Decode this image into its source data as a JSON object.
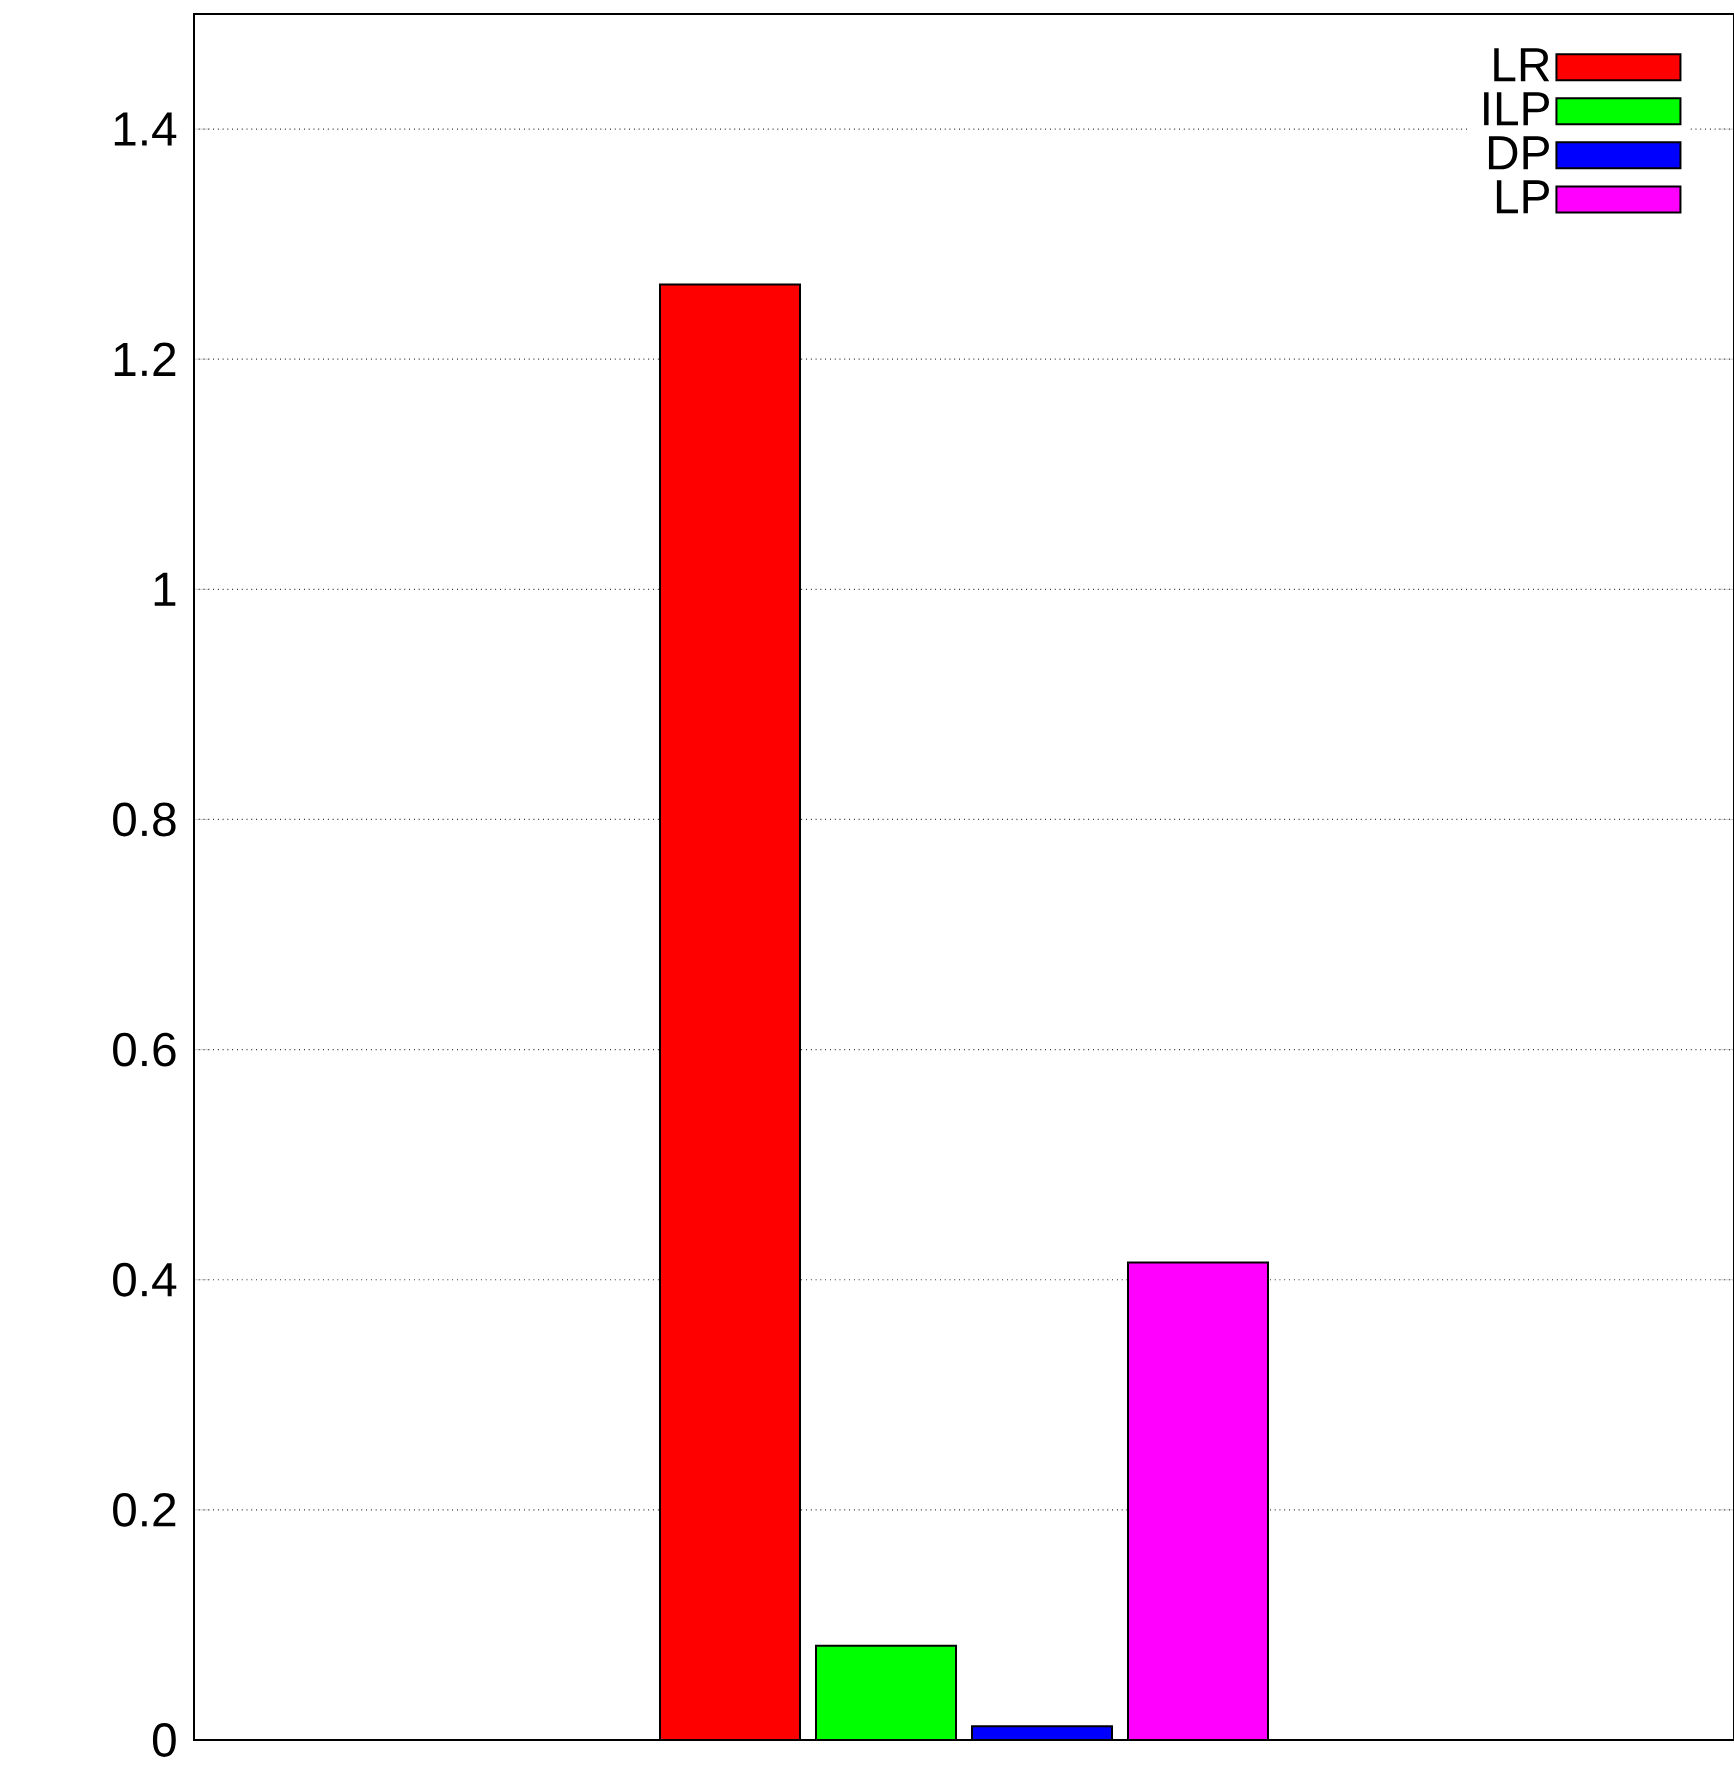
{
  "chart_data": {
    "type": "bar",
    "categories": [
      null
    ],
    "series": [
      {
        "name": "LR",
        "color": "#ff0000",
        "values": [
          1.265
        ]
      },
      {
        "name": "ILP",
        "color": "#00ff00",
        "values": [
          0.082
        ]
      },
      {
        "name": "DP",
        "color": "#0000ff",
        "values": [
          0.012
        ]
      },
      {
        "name": "LP",
        "color": "#ff00ff",
        "values": [
          0.415
        ]
      }
    ],
    "ylim": [
      0,
      1.5
    ],
    "yticks": [
      0,
      0.2,
      0.4,
      0.6,
      0.8,
      1,
      1.2,
      1.4
    ],
    "grid": "y",
    "legend": "top right"
  }
}
